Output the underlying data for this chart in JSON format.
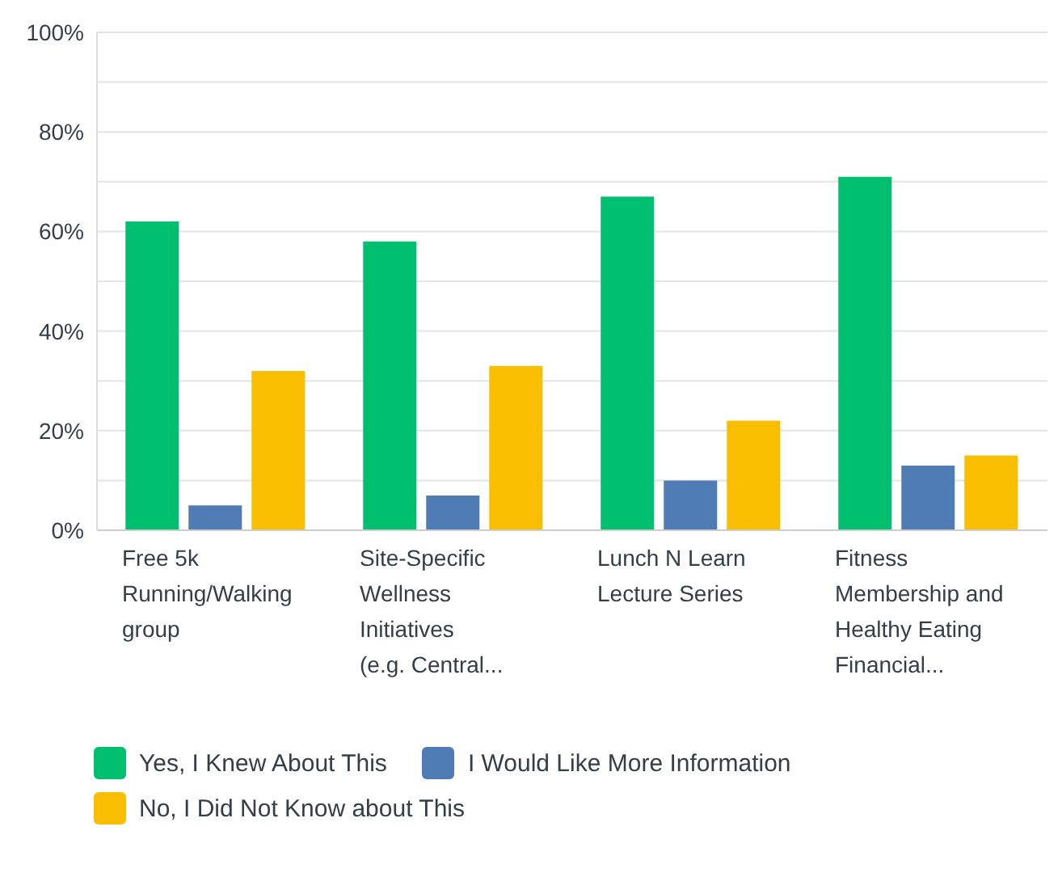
{
  "chart_data": {
    "type": "bar",
    "categories": [
      "Free 5k Running/Walking group",
      "Site-Specific Wellness Initiatives (e.g. Central...",
      "Lunch N Learn Lecture Series",
      "Fitness Membership and Healthy Eating Financial..."
    ],
    "series": [
      {
        "name": "Yes, I Knew About This",
        "color": "#00bf6f",
        "values": [
          62,
          58,
          67,
          71
        ]
      },
      {
        "name": "I Would Like More Information",
        "color": "#507cb6",
        "values": [
          5,
          7,
          10,
          13
        ]
      },
      {
        "name": "No, I Did Not Know about This",
        "color": "#f9be00",
        "values": [
          32,
          33,
          22,
          15
        ]
      }
    ],
    "ylim": [
      0,
      100
    ],
    "yticks": [
      {
        "value": 0,
        "label": "0%"
      },
      {
        "value": 10,
        "label": null
      },
      {
        "value": 20,
        "label": "20%"
      },
      {
        "value": 30,
        "label": null
      },
      {
        "value": 40,
        "label": "40%"
      },
      {
        "value": 50,
        "label": null
      },
      {
        "value": 60,
        "label": "60%"
      },
      {
        "value": 70,
        "label": null
      },
      {
        "value": 80,
        "label": "80%"
      },
      {
        "value": 90,
        "label": null
      },
      {
        "value": 100,
        "label": "100%"
      }
    ],
    "grid": "y",
    "legend": "bottom"
  }
}
